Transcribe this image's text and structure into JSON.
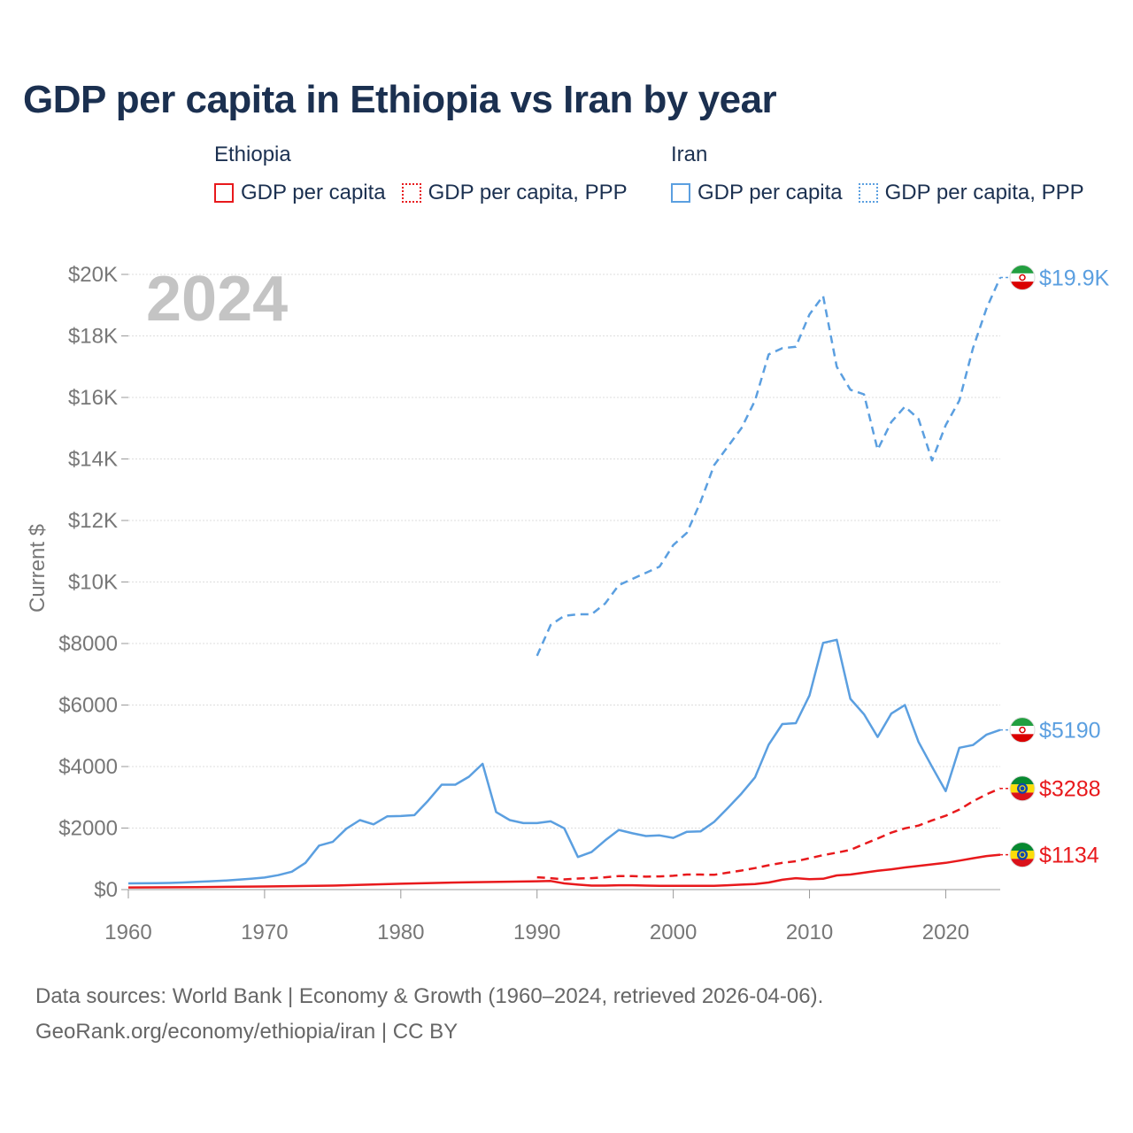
{
  "title": "GDP per capita in Ethiopia vs Iran by year",
  "legend": {
    "groups": [
      {
        "name": "Ethiopia",
        "color": "#e8191c",
        "items": [
          {
            "label": "GDP per capita",
            "style": "solid"
          },
          {
            "label": "GDP per capita, PPP",
            "style": "dotted"
          }
        ]
      },
      {
        "name": "Iran",
        "color": "#5b9fe0",
        "items": [
          {
            "label": "GDP per capita",
            "style": "solid"
          },
          {
            "label": "GDP per capita, PPP",
            "style": "dotted"
          }
        ]
      }
    ]
  },
  "year_watermark": "2024",
  "footer": {
    "line1": "Data sources: World Bank | Economy & Growth (1960–2024, retrieved 2026-04-06).",
    "line2": "GeoRank.org/economy/ethiopia/iran | CC BY"
  },
  "colors": {
    "ethiopia": "#e8191c",
    "iran": "#5b9fe0",
    "grid": "#dddddd",
    "axis_text": "#777777"
  },
  "chart_data": {
    "type": "line",
    "title": "GDP per capita in Ethiopia vs Iran by year",
    "ylabel": "Current $",
    "xlabel": "",
    "xlim": [
      1960,
      2024
    ],
    "ylim": [
      0,
      20000
    ],
    "x_ticks": [
      1960,
      1970,
      1980,
      1990,
      2000,
      2010,
      2020
    ],
    "x_tick_labels": [
      "1960",
      "1970",
      "1980",
      "1990",
      "2000",
      "2010",
      "2020"
    ],
    "y_ticks": [
      0,
      2000,
      4000,
      6000,
      8000,
      10000,
      12000,
      14000,
      16000,
      18000,
      20000
    ],
    "y_tick_labels": [
      "$0",
      "$2000",
      "$4000",
      "$6000",
      "$8000",
      "$10K",
      "$12K",
      "$14K",
      "$16K",
      "$18K",
      "$20K"
    ],
    "series": [
      {
        "name": "Iran GDP per capita",
        "country": "iran",
        "style": "solid",
        "end_label": "$5190",
        "x": [
          1960,
          1961,
          1962,
          1963,
          1964,
          1965,
          1966,
          1967,
          1968,
          1969,
          1970,
          1971,
          1972,
          1973,
          1974,
          1975,
          1976,
          1977,
          1978,
          1979,
          1980,
          1981,
          1982,
          1983,
          1984,
          1985,
          1986,
          1987,
          1988,
          1989,
          1990,
          1991,
          1992,
          1993,
          1994,
          1995,
          1996,
          1997,
          1998,
          1999,
          2000,
          2001,
          2002,
          2003,
          2004,
          2005,
          2006,
          2007,
          2008,
          2009,
          2010,
          2011,
          2012,
          2013,
          2014,
          2015,
          2016,
          2017,
          2018,
          2019,
          2020,
          2021,
          2022,
          2023,
          2024
        ],
        "values": [
          200,
          205,
          210,
          215,
          230,
          250,
          270,
          290,
          320,
          350,
          390,
          470,
          580,
          870,
          1430,
          1550,
          1980,
          2260,
          2120,
          2380,
          2390,
          2420,
          2890,
          3410,
          3410,
          3670,
          4090,
          2520,
          2260,
          2160,
          2160,
          2220,
          1990,
          1060,
          1220,
          1600,
          1940,
          1830,
          1740,
          1760,
          1680,
          1880,
          1890,
          2200,
          2650,
          3120,
          3650,
          4710,
          5380,
          5410,
          6310,
          8020,
          8120,
          6200,
          5700,
          4960,
          5720,
          6000,
          4800,
          3990,
          3200,
          4610,
          4700,
          5040,
          5190
        ]
      },
      {
        "name": "Iran GDP per capita, PPP",
        "country": "iran",
        "style": "dashed",
        "end_label": "$19.9K",
        "x": [
          1990,
          1991,
          1992,
          1993,
          1994,
          1995,
          1996,
          1997,
          1998,
          1999,
          2000,
          2001,
          2002,
          2003,
          2004,
          2005,
          2006,
          2007,
          2008,
          2009,
          2010,
          2011,
          2012,
          2013,
          2014,
          2015,
          2016,
          2017,
          2018,
          2019,
          2020,
          2021,
          2022,
          2023,
          2024
        ],
        "values": [
          7600,
          8600,
          8900,
          8950,
          8950,
          9300,
          9900,
          10100,
          10300,
          10500,
          11200,
          11600,
          12600,
          13800,
          14400,
          15000,
          15900,
          17400,
          17600,
          17650,
          18700,
          19300,
          17000,
          16250,
          16100,
          14300,
          15200,
          15700,
          15300,
          13950,
          15100,
          15900,
          17600,
          18900,
          19900
        ]
      },
      {
        "name": "Ethiopia GDP per capita",
        "country": "ethiopia",
        "style": "solid",
        "end_label": "$1134",
        "x": [
          1960,
          1965,
          1970,
          1975,
          1980,
          1985,
          1990,
          1991,
          1992,
          1993,
          1994,
          1995,
          1996,
          1997,
          1998,
          1999,
          2000,
          2001,
          2002,
          2003,
          2004,
          2005,
          2006,
          2007,
          2008,
          2009,
          2010,
          2011,
          2012,
          2013,
          2014,
          2015,
          2016,
          2017,
          2018,
          2019,
          2020,
          2021,
          2022,
          2023,
          2024
        ],
        "values": [
          70,
          80,
          100,
          130,
          190,
          240,
          270,
          280,
          200,
          160,
          130,
          130,
          140,
          140,
          130,
          120,
          125,
          125,
          120,
          120,
          140,
          160,
          180,
          230,
          320,
          370,
          340,
          350,
          460,
          490,
          550,
          610,
          660,
          720,
          770,
          820,
          870,
          940,
          1020,
          1090,
          1134
        ]
      },
      {
        "name": "Ethiopia GDP per capita, PPP",
        "country": "ethiopia",
        "style": "dashed",
        "end_label": "$3288",
        "x": [
          1990,
          1991,
          1992,
          1993,
          1994,
          1995,
          1996,
          1997,
          1998,
          1999,
          2000,
          2001,
          2002,
          2003,
          2004,
          2005,
          2006,
          2007,
          2008,
          2009,
          2010,
          2011,
          2012,
          2013,
          2014,
          2015,
          2016,
          2017,
          2018,
          2019,
          2020,
          2021,
          2022,
          2023,
          2024
        ],
        "values": [
          400,
          370,
          330,
          360,
          370,
          400,
          440,
          440,
          420,
          430,
          450,
          490,
          490,
          480,
          550,
          620,
          700,
          790,
          870,
          920,
          1020,
          1120,
          1200,
          1290,
          1480,
          1660,
          1850,
          1990,
          2080,
          2250,
          2400,
          2600,
          2870,
          3100,
          3288
        ]
      }
    ]
  }
}
